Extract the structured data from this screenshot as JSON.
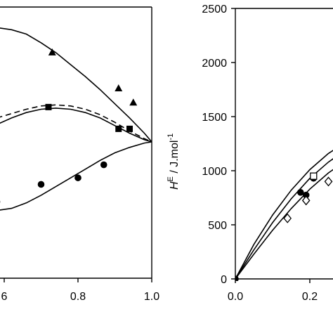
{
  "chart_data": [
    {
      "type": "scatter",
      "title": "",
      "xlabel": "",
      "ylabel": "",
      "xlim": [
        0.6,
        1.0
      ],
      "xticks": [
        0.6,
        0.8,
        1.0
      ],
      "xtick_labels": [
        ".6",
        "0.8",
        "1.0"
      ],
      "series": [
        {
          "marker": "triangle",
          "points": [
            [
              0.73,
              82
            ],
            [
              0.91,
              49
            ],
            [
              0.95,
              36
            ]
          ],
          "curve": [
            [
              0.58,
              105
            ],
            [
              0.62,
              103
            ],
            [
              0.66,
              99
            ],
            [
              0.7,
              91
            ],
            [
              0.74,
              82
            ],
            [
              0.78,
              71
            ],
            [
              0.82,
              60
            ],
            [
              0.86,
              48
            ],
            [
              0.9,
              35
            ],
            [
              0.94,
              22
            ],
            [
              0.98,
              8
            ],
            [
              1.0,
              0
            ]
          ]
        },
        {
          "marker": "square",
          "points": [
            [
              0.72,
              32
            ],
            [
              0.91,
              12
            ],
            [
              0.94,
              12
            ]
          ],
          "curve": [
            [
              0.58,
              16
            ],
            [
              0.62,
              22
            ],
            [
              0.66,
              27
            ],
            [
              0.7,
              30
            ],
            [
              0.74,
              31
            ],
            [
              0.78,
              30
            ],
            [
              0.82,
              27
            ],
            [
              0.86,
              22
            ],
            [
              0.9,
              15
            ],
            [
              0.94,
              8
            ],
            [
              0.98,
              2
            ],
            [
              1.0,
              0
            ]
          ]
        },
        {
          "marker": "none",
          "line": "dashed",
          "curve": [
            [
              0.58,
              22
            ],
            [
              0.62,
              26
            ],
            [
              0.66,
              30
            ],
            [
              0.7,
              33
            ],
            [
              0.74,
              34
            ],
            [
              0.78,
              33
            ],
            [
              0.82,
              30
            ],
            [
              0.86,
              25
            ],
            [
              0.9,
              18
            ],
            [
              0.94,
              10
            ],
            [
              0.98,
              3
            ],
            [
              1.0,
              0
            ]
          ]
        },
        {
          "marker": "circle",
          "points": [
            [
              0.58,
              -55
            ],
            [
              0.7,
              -39
            ],
            [
              0.8,
              -33
            ],
            [
              0.87,
              -21
            ]
          ],
          "curve": [
            [
              0.58,
              -63
            ],
            [
              0.62,
              -61
            ],
            [
              0.66,
              -56
            ],
            [
              0.7,
              -49
            ],
            [
              0.74,
              -41
            ],
            [
              0.78,
              -33
            ],
            [
              0.82,
              -25
            ],
            [
              0.86,
              -17
            ],
            [
              0.9,
              -10
            ],
            [
              0.94,
              -5
            ],
            [
              0.98,
              -1
            ],
            [
              1.0,
              0
            ]
          ]
        }
      ]
    },
    {
      "type": "scatter",
      "title": "",
      "xlabel": "",
      "ylabel_symbol": "H",
      "ylabel_sup": "E",
      "ylabel_unit": " / J.mol",
      "ylabel_unit_sup": "-1",
      "xlim": [
        0.0,
        0.3
      ],
      "ylim": [
        0,
        2500
      ],
      "xticks": [
        0.0,
        0.2
      ],
      "xtick_labels": [
        "0.0",
        "0.2"
      ],
      "yticks": [
        0,
        500,
        1000,
        1500,
        2000,
        2500
      ],
      "ytick_labels": [
        "0",
        "500",
        "1000",
        "1500",
        "2000",
        "2500"
      ],
      "series": [
        {
          "marker": "circle",
          "points": [
            [
              0.0,
              0
            ],
            [
              0.175,
              800
            ],
            [
              0.19,
              775
            ],
            [
              0.21,
              930
            ]
          ]
        },
        {
          "marker": "open-square",
          "points": [
            [
              0.21,
              950
            ]
          ]
        },
        {
          "marker": "open-diamond",
          "points": [
            [
              0.14,
              560
            ],
            [
              0.19,
              725
            ],
            [
              0.25,
              900
            ]
          ]
        },
        {
          "marker": "none",
          "curve": [
            [
              0.0,
              0
            ],
            [
              0.05,
              320
            ],
            [
              0.1,
              590
            ],
            [
              0.15,
              820
            ],
            [
              0.2,
              1010
            ],
            [
              0.25,
              1160
            ],
            [
              0.3,
              1270
            ]
          ]
        },
        {
          "marker": "none",
          "curve": [
            [
              0.0,
              0
            ],
            [
              0.05,
              270
            ],
            [
              0.1,
              520
            ],
            [
              0.15,
              740
            ],
            [
              0.2,
              930
            ],
            [
              0.25,
              1080
            ],
            [
              0.3,
              1200
            ]
          ]
        },
        {
          "marker": "none",
          "curve": [
            [
              0.0,
              0
            ],
            [
              0.05,
              230
            ],
            [
              0.1,
              450
            ],
            [
              0.15,
              650
            ],
            [
              0.2,
              830
            ],
            [
              0.25,
              980
            ],
            [
              0.3,
              1100
            ]
          ]
        }
      ]
    }
  ]
}
